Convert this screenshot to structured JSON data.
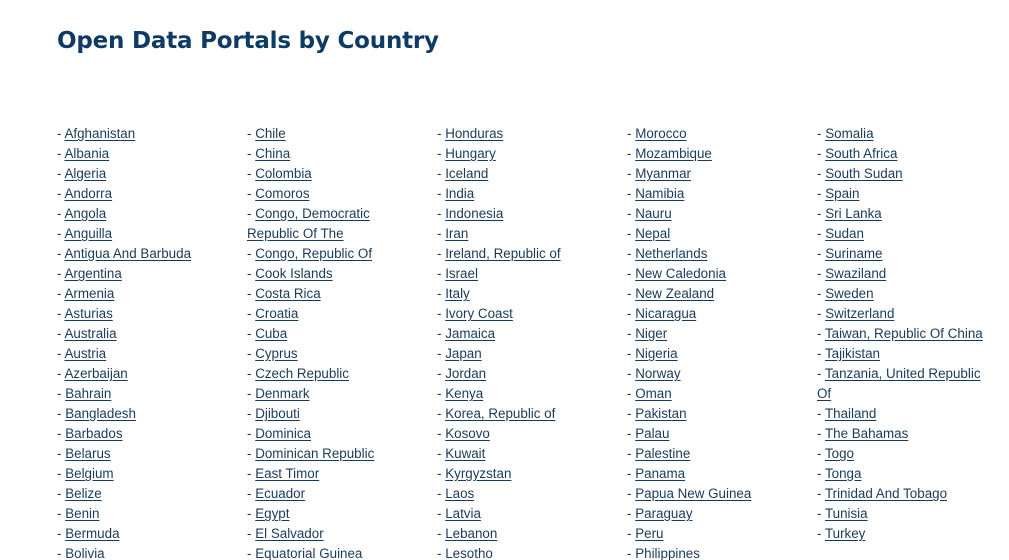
{
  "page": {
    "title": "Open Data Portals by Country"
  },
  "columns": [
    [
      "Afghanistan",
      "Albania",
      "Algeria",
      "Andorra",
      "Angola",
      "Anguilla",
      "Antigua And Barbuda",
      "Argentina",
      "Armenia",
      "Asturias",
      "Australia",
      "Austria",
      "Azerbaijan",
      "Bahrain",
      "Bangladesh",
      "Barbados",
      "Belarus",
      "Belgium",
      "Belize",
      "Benin",
      "Bermuda",
      "Bolivia"
    ],
    [
      "Chile",
      "China",
      "Colombia",
      "Comoros",
      "Congo, Democratic Republic Of The",
      "Congo, Republic Of",
      "Cook Islands",
      "Costa Rica",
      "Croatia",
      "Cuba",
      "Cyprus",
      "Czech Republic",
      "Denmark",
      "Djibouti",
      "Dominica",
      "Dominican Republic",
      "East Timor",
      "Ecuador",
      "Egypt",
      "El Salvador",
      "Equatorial Guinea"
    ],
    [
      "Honduras",
      "Hungary",
      "Iceland",
      "India",
      "Indonesia",
      "Iran",
      "Ireland, Republic of",
      "Israel",
      "Italy",
      "Ivory Coast",
      "Jamaica",
      "Japan",
      "Jordan",
      "Kenya",
      "Korea, Republic of",
      "Kosovo",
      "Kuwait",
      "Kyrgyzstan",
      "Laos",
      "Latvia",
      "Lebanon",
      "Lesotho"
    ],
    [
      "Morocco",
      "Mozambique",
      "Myanmar",
      "Namibia",
      "Nauru",
      "Nepal",
      "Netherlands",
      "New Caledonia",
      "New Zealand",
      "Nicaragua",
      "Niger",
      "Nigeria",
      "Norway",
      "Oman",
      "Pakistan",
      "Palau",
      "Palestine",
      "Panama",
      "Papua New Guinea",
      "Paraguay",
      "Peru",
      "Philippines"
    ],
    [
      "Somalia",
      "South Africa",
      "South Sudan",
      "Spain",
      "Sri Lanka",
      "Sudan",
      "Suriname",
      "Swaziland",
      "Sweden",
      "Switzerland",
      "Taiwan, Republic Of China",
      "Tajikistan",
      "Tanzania, United Republic Of",
      "Thailand",
      "The Bahamas",
      "Togo",
      "Tonga",
      "Trinidad And Tobago",
      "Tunisia",
      "Turkey"
    ]
  ],
  "list": {
    "bullet": "- "
  }
}
